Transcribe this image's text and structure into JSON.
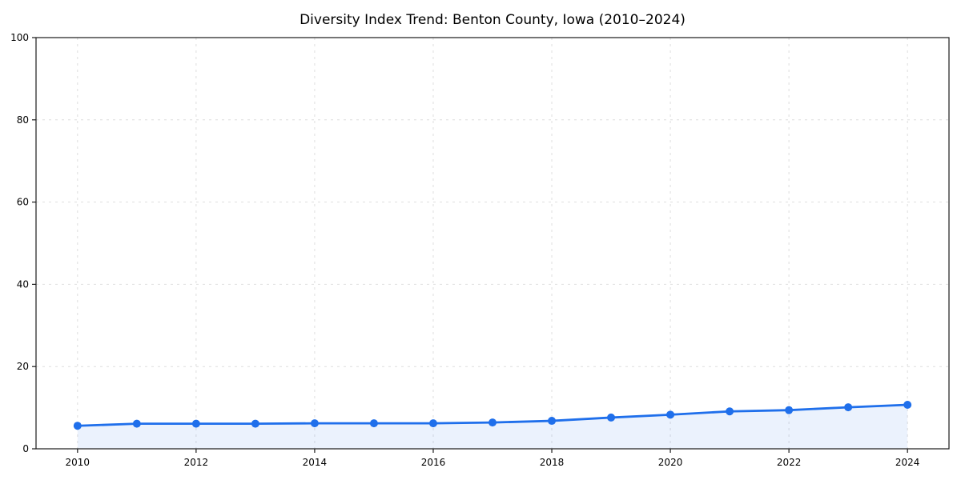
{
  "page": {
    "background_color": "#ffffff"
  },
  "chart_data": {
    "type": "area",
    "title": "Diversity Index Trend: Benton County, Iowa (2010–2024)",
    "xlabel": "",
    "ylabel": "",
    "x": [
      2010,
      2011,
      2012,
      2013,
      2014,
      2015,
      2016,
      2017,
      2018,
      2019,
      2020,
      2021,
      2022,
      2023,
      2024
    ],
    "values": [
      5.6,
      6.1,
      6.1,
      6.1,
      6.2,
      6.2,
      6.2,
      6.4,
      6.8,
      7.6,
      8.3,
      9.1,
      9.4,
      10.1,
      10.7
    ],
    "x_ticks": [
      2010,
      2012,
      2014,
      2016,
      2018,
      2020,
      2022,
      2024
    ],
    "y_ticks": [
      0,
      20,
      40,
      60,
      80,
      100
    ],
    "xlim": [
      2009.3,
      2024.7
    ],
    "ylim": [
      0,
      100
    ],
    "grid": true,
    "grid_style": "dashed",
    "legend": false,
    "line_color": "#1f6feb",
    "marker_color": "#1f6feb",
    "fill_color": "rgba(31, 111, 235, 0.09)",
    "grid_color": "#dedede",
    "spine_color": "#1a1a1a",
    "text_color": "#000000"
  }
}
